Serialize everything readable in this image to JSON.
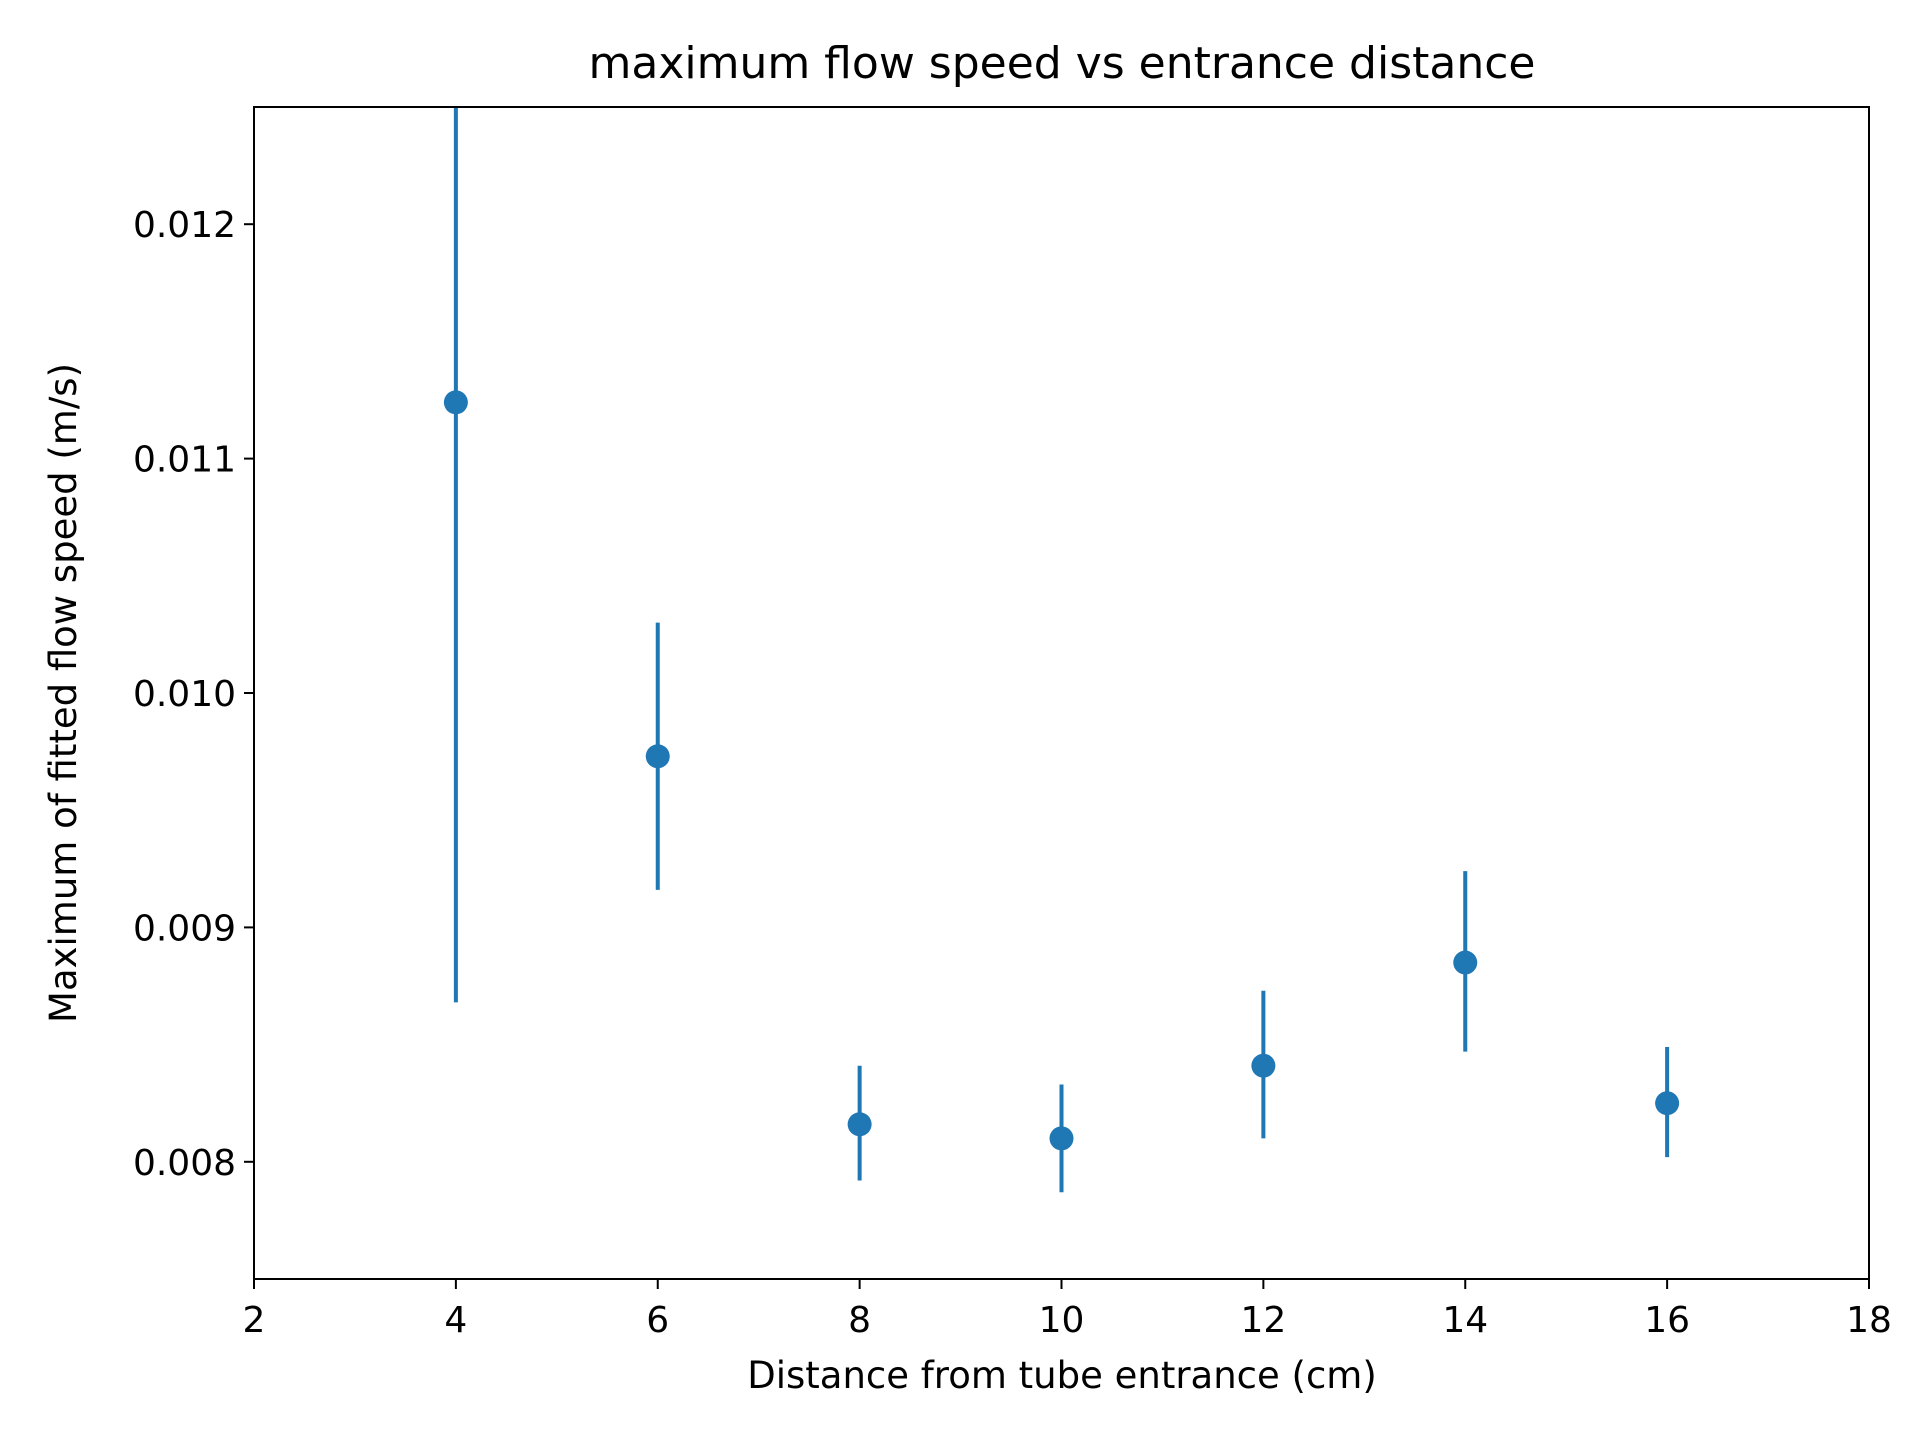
{
  "chart_data": {
    "type": "scatter",
    "title": "maximum flow speed vs entrance distance",
    "xlabel": "Distance from tube entrance (cm)",
    "ylabel": "Maximum of fitted flow speed (m/s)",
    "xlim": [
      2,
      18
    ],
    "ylim": [
      0.0075,
      0.0125
    ],
    "x_ticks": [
      2,
      4,
      6,
      8,
      10,
      12,
      14,
      16,
      18
    ],
    "x_tick_labels": [
      "2",
      "4",
      "6",
      "8",
      "10",
      "12",
      "14",
      "16",
      "18"
    ],
    "y_ticks": [
      0.008,
      0.009,
      0.01,
      0.011,
      0.012
    ],
    "y_tick_labels": [
      "0.008",
      "0.009",
      "0.010",
      "0.011",
      "0.012"
    ],
    "grid": false,
    "color": "#1f77b4",
    "points": [
      {
        "x": 4,
        "y": 0.01124,
        "yerr_low": 0.00868,
        "yerr_high": 0.0125
      },
      {
        "x": 6,
        "y": 0.00973,
        "yerr_low": 0.00916,
        "yerr_high": 0.0103
      },
      {
        "x": 8,
        "y": 0.00816,
        "yerr_low": 0.00792,
        "yerr_high": 0.00841
      },
      {
        "x": 10,
        "y": 0.0081,
        "yerr_low": 0.00787,
        "yerr_high": 0.00833
      },
      {
        "x": 12,
        "y": 0.00841,
        "yerr_low": 0.0081,
        "yerr_high": 0.00873
      },
      {
        "x": 14,
        "y": 0.00885,
        "yerr_low": 0.00847,
        "yerr_high": 0.00924
      },
      {
        "x": 16,
        "y": 0.00825,
        "yerr_low": 0.00802,
        "yerr_high": 0.00849
      }
    ]
  }
}
